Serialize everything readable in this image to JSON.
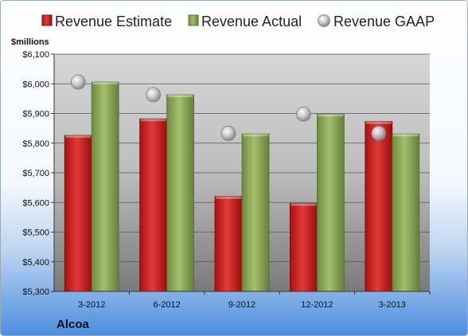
{
  "company": "Alcoa",
  "chart_data": {
    "type": "bar",
    "ylabel": "$millions",
    "ylim": [
      5300,
      6100
    ],
    "ytick_step": 100,
    "ytick_prefix": "$",
    "grid": true,
    "legend_position": "top",
    "categories": [
      "3-2012",
      "6-2012",
      "9-2012",
      "12-2012",
      "3-2013"
    ],
    "series": [
      {
        "name": "Revenue Estimate",
        "kind": "bar",
        "color": "#cc1f1f",
        "values": [
          5826,
          5882,
          5620,
          5597,
          5873
        ]
      },
      {
        "name": "Revenue Actual",
        "kind": "bar",
        "color": "#8ca85a",
        "values": [
          6006,
          5963,
          5831,
          5898,
          5831
        ]
      },
      {
        "name": "Revenue GAAP",
        "kind": "marker",
        "color": "#a8a8a8",
        "values": [
          6006,
          5963,
          5833,
          5898,
          5833
        ]
      }
    ]
  }
}
